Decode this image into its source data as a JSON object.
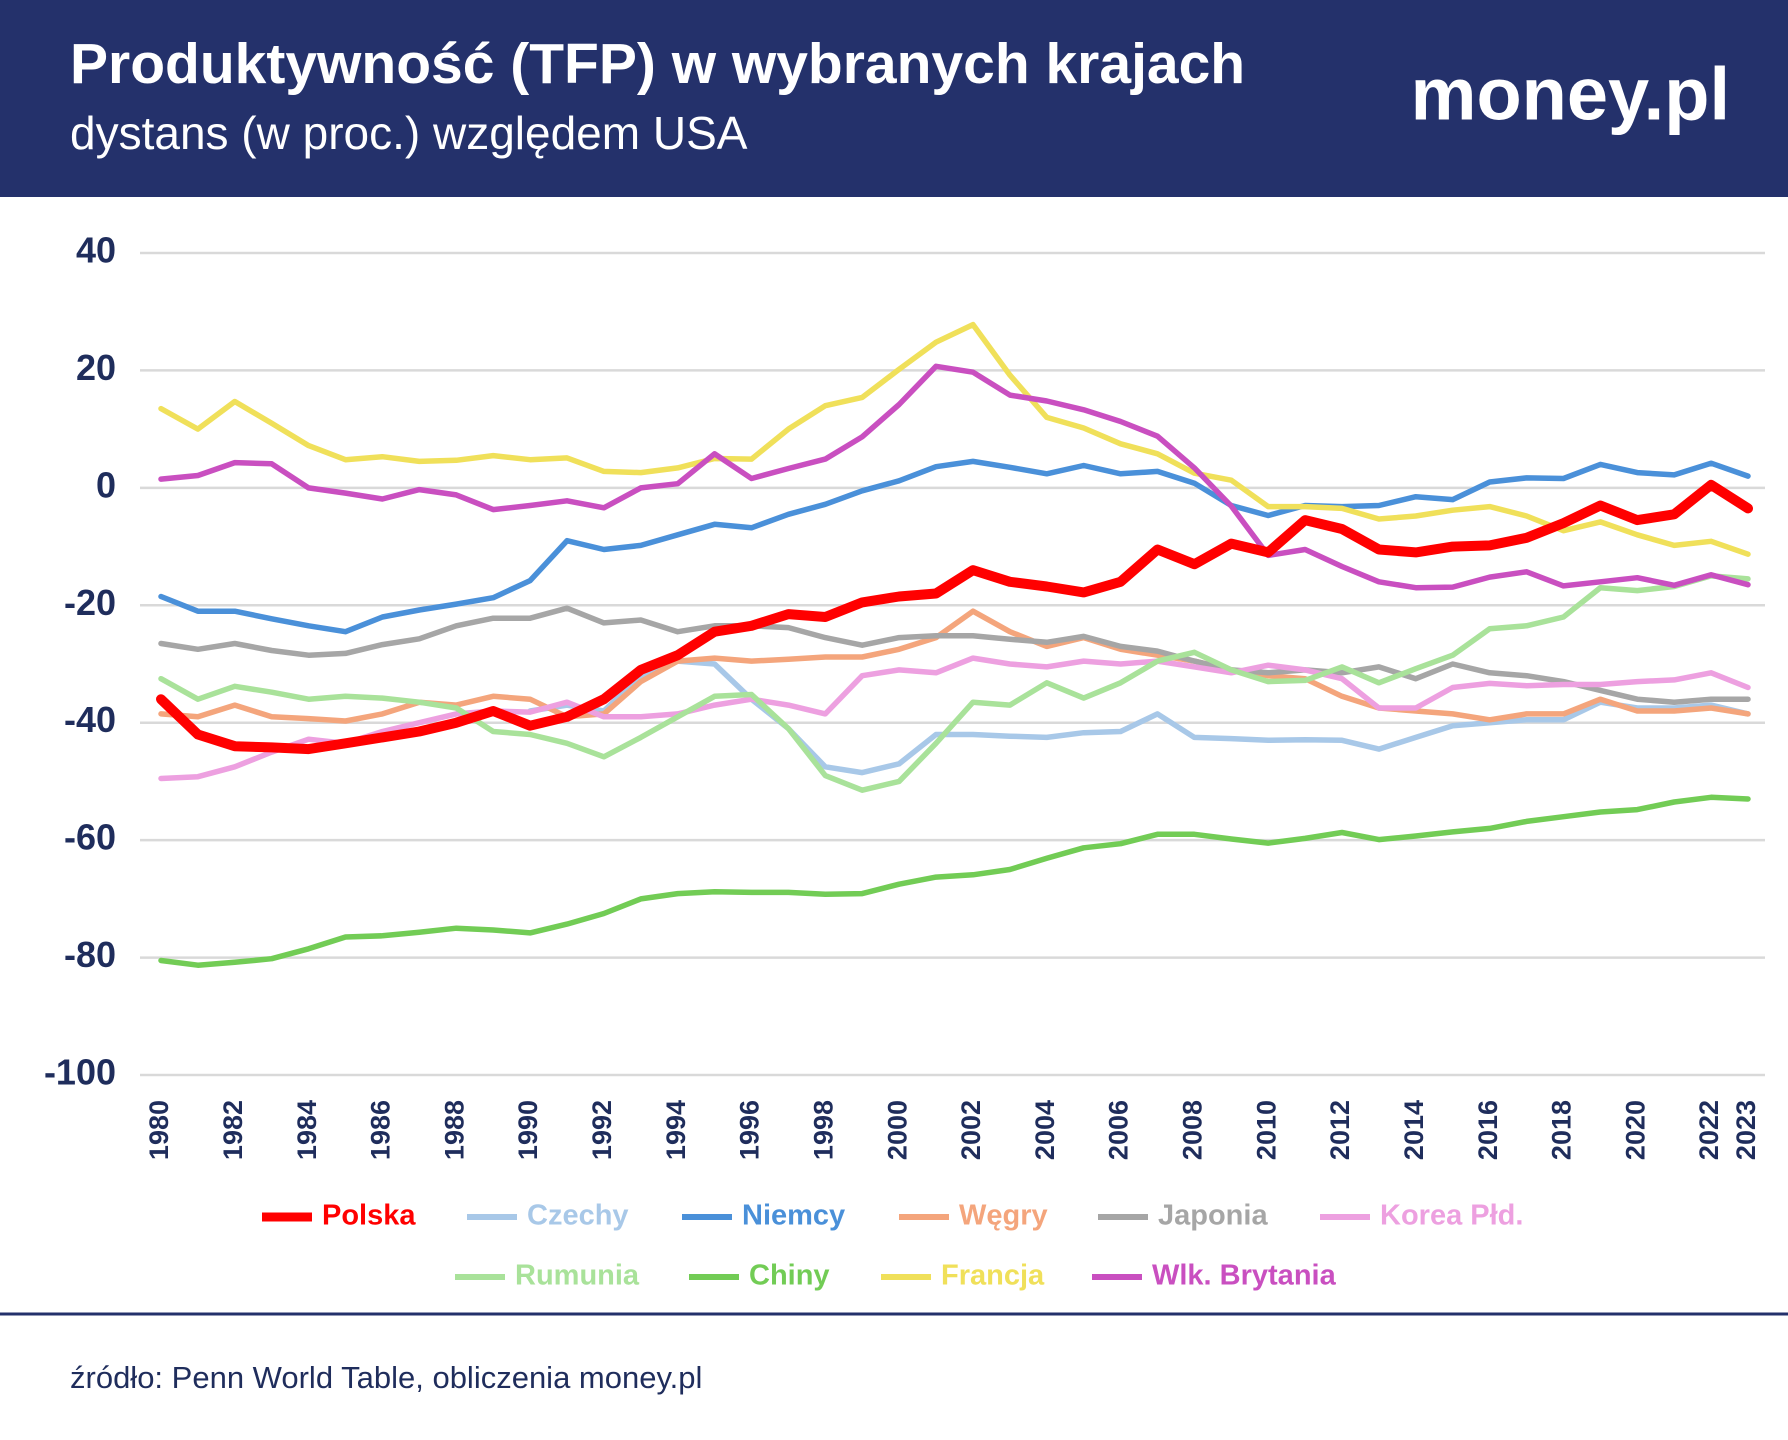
{
  "chart_data": {
    "type": "line",
    "title": "Produktywność (TFP) w wybranych krajach",
    "subtitle": "dystans (w proc.) względem USA",
    "logo": "money.pl",
    "source": "źródło: Penn World Table, obliczenia money.pl",
    "x": [
      1980,
      1981,
      1982,
      1983,
      1984,
      1985,
      1986,
      1987,
      1988,
      1989,
      1990,
      1991,
      1992,
      1993,
      1994,
      1995,
      1996,
      1997,
      1998,
      1999,
      2000,
      2001,
      2002,
      2003,
      2004,
      2005,
      2006,
      2007,
      2008,
      2009,
      2010,
      2011,
      2012,
      2013,
      2014,
      2015,
      2016,
      2017,
      2018,
      2019,
      2020,
      2021,
      2022,
      2023
    ],
    "xlim": [
      1980,
      2023
    ],
    "xticks": [
      1980,
      1982,
      1984,
      1986,
      1988,
      1990,
      1992,
      1994,
      1996,
      1998,
      2000,
      2002,
      2004,
      2006,
      2008,
      2010,
      2012,
      2014,
      2016,
      2018,
      2020,
      2022,
      2023
    ],
    "ylim": [
      -100,
      40
    ],
    "yticks": [
      -100,
      -80,
      -60,
      -40,
      -20,
      0,
      20,
      40
    ],
    "grid": true,
    "series": [
      {
        "name": "Polska",
        "color": "#ff0000",
        "values": [
          -36,
          -42,
          -44,
          -44.2,
          -44.5,
          -43.5,
          -42.5,
          -41.5,
          -40,
          -38,
          -40.5,
          -39,
          -36,
          -31,
          -28.5,
          -24.5,
          -23.5,
          -21.5,
          -22,
          -19.5,
          -18.5,
          -18,
          -14,
          -16,
          -16.8,
          -17.8,
          -16,
          -10.5,
          -13,
          -9.5,
          -11,
          -5.5,
          -7,
          -10.5,
          -11,
          -10,
          -9.8,
          -8.5,
          -6,
          -3,
          -5.5,
          -4.5,
          0.5,
          -3.5
        ]
      },
      {
        "name": "Czechy",
        "color": "#a8c8e8",
        "values": [
          null,
          null,
          null,
          null,
          null,
          null,
          null,
          null,
          null,
          null,
          -38,
          -37,
          -38,
          -32,
          -29.5,
          -30,
          -36,
          -41,
          -47.5,
          -48.5,
          -47,
          -42,
          -42,
          -42.3,
          -42.5,
          -41.7,
          -41.5,
          -38.5,
          -42.5,
          -42.7,
          -43,
          -42.9,
          -43,
          -44.5,
          -42.5,
          -40.5,
          -40,
          -39.5,
          -39.5,
          -36.5,
          -37.5,
          -37.5,
          -37,
          -38.5
        ]
      },
      {
        "name": "Niemcy",
        "color": "#4a90d9",
        "values": [
          -18.5,
          -21,
          -21,
          -22.3,
          -23.5,
          -24.5,
          -22,
          -20.8,
          -19.8,
          -18.7,
          -15.8,
          -9,
          -10.5,
          -9.8,
          -8,
          -6.2,
          -6.8,
          -4.5,
          -2.8,
          -0.5,
          1.2,
          3.6,
          4.5,
          3.5,
          2.4,
          3.8,
          2.4,
          2.8,
          0.8,
          -3,
          -4.7,
          -3,
          -3.2,
          -3,
          -1.5,
          -2,
          1,
          1.7,
          1.6,
          4,
          2.6,
          2.2,
          4.2,
          2
        ]
      },
      {
        "name": "Węgry",
        "color": "#f4a57c",
        "values": [
          -38.5,
          -39,
          -37,
          -39,
          -39.3,
          -39.7,
          -38.5,
          -36.5,
          -37,
          -35.5,
          -36,
          -39,
          -38.5,
          -33,
          -29.5,
          -29,
          -29.5,
          -29.2,
          -28.8,
          -28.8,
          -27.5,
          -25.5,
          -21,
          -24.5,
          -27,
          -25.5,
          -27.5,
          -28.5,
          -29.5,
          -31,
          -32,
          -32.5,
          -35.5,
          -37.5,
          -38,
          -38.5,
          -39.5,
          -38.5,
          -38.5,
          -36,
          -38,
          -38,
          -37.5,
          -38.5
        ]
      },
      {
        "name": "Japonia",
        "color": "#a6a6a6",
        "values": [
          -26.5,
          -27.5,
          -26.5,
          -27.7,
          -28.5,
          -28.2,
          -26.7,
          -25.7,
          -23.5,
          -22.2,
          -22.2,
          -20.5,
          -23,
          -22.5,
          -24.5,
          -23.5,
          -23.5,
          -23.8,
          -25.5,
          -26.8,
          -25.5,
          -25.2,
          -25.2,
          -25.8,
          -26.3,
          -25.3,
          -27,
          -27.8,
          -29.5,
          -31,
          -31.5,
          -31,
          -31.5,
          -30.5,
          -32.5,
          -30,
          -31.5,
          -32,
          -33,
          -34.5,
          -36,
          -36.5,
          -36,
          -36
        ]
      },
      {
        "name": "Korea Płd.",
        "color": "#eda0e0",
        "values": [
          -49.5,
          -49.2,
          -47.5,
          -45,
          -42.8,
          -43.5,
          -41.5,
          -40,
          -38.5,
          -38,
          -38.2,
          -36.5,
          -39,
          -39,
          -38.5,
          -37,
          -36,
          -37,
          -38.5,
          -32,
          -31,
          -31.5,
          -29,
          -30,
          -30.5,
          -29.5,
          -30,
          -29.5,
          -30.5,
          -31.5,
          -30.2,
          -31,
          -32.5,
          -37.5,
          -37.5,
          -34,
          -33.3,
          -33.7,
          -33.5,
          -33.5,
          -33,
          -32.7,
          -31.5,
          -34
        ]
      },
      {
        "name": "Rumunia",
        "color": "#a9e29a",
        "values": [
          -32.5,
          -36,
          -33.8,
          -34.8,
          -36,
          -35.5,
          -35.8,
          -36.5,
          -37.5,
          -41.5,
          -42,
          -43.5,
          -45.8,
          -42.5,
          -39,
          -35.5,
          -35.2,
          -41,
          -49,
          -51.5,
          -50,
          -43.5,
          -36.5,
          -37,
          -33.2,
          -35.8,
          -33.2,
          -29.5,
          -28,
          -31,
          -33,
          -32.8,
          -30.5,
          -33.2,
          -30.8,
          -28.5,
          -24,
          -23.5,
          -22,
          -17,
          -17.5,
          -16.8,
          -15,
          -15.5
        ]
      },
      {
        "name": "Chiny",
        "color": "#72cc55",
        "values": [
          -80.5,
          -81.3,
          -80.8,
          -80.2,
          -78.5,
          -76.5,
          -76.3,
          -75.7,
          -75,
          -75.3,
          -75.8,
          -74.3,
          -72.5,
          -70,
          -69.1,
          -68.8,
          -68.9,
          -68.9,
          -69.2,
          -69.1,
          -67.5,
          -66.3,
          -65.9,
          -65,
          -63.1,
          -61.3,
          -60.6,
          -59,
          -59,
          -59.8,
          -60.5,
          -59.7,
          -58.7,
          -59.9,
          -59.3,
          -58.6,
          -58,
          -56.8,
          -56,
          -55.2,
          -54.8,
          -53.5,
          -52.7,
          -53
        ]
      },
      {
        "name": "Francja",
        "color": "#f0e05a",
        "values": [
          13.5,
          10,
          14.7,
          11,
          7.2,
          4.8,
          5.3,
          4.5,
          4.7,
          5.5,
          4.8,
          5.1,
          2.8,
          2.6,
          3.4,
          5,
          4.9,
          10,
          14,
          15.4,
          20.2,
          24.8,
          27.8,
          19.2,
          12,
          10.2,
          7.5,
          5.8,
          2.5,
          1.3,
          -3.2,
          -3.2,
          -3.5,
          -5.3,
          -4.8,
          -3.8,
          -3.2,
          -4.8,
          -7.3,
          -5.8,
          -8,
          -9.8,
          -9.1,
          -11.3
        ]
      },
      {
        "name": "Wlk. Brytania",
        "color": "#c94fc0",
        "values": [
          1.5,
          2.1,
          4.3,
          4.1,
          0,
          -0.9,
          -1.9,
          -0.3,
          -1.2,
          -3.7,
          -3,
          -2.2,
          -3.4,
          0,
          0.7,
          5.8,
          1.6,
          3.3,
          4.9,
          8.7,
          14.2,
          20.7,
          19.7,
          15.8,
          14.8,
          13.3,
          11.3,
          8.8,
          3.4,
          -3.1,
          -11.5,
          -10.5,
          -13.4,
          -16,
          -17,
          -16.9,
          -15.2,
          -14.3,
          -16.7,
          -16,
          -15.3,
          -16.6,
          -14.8,
          -16.5
        ]
      }
    ]
  }
}
